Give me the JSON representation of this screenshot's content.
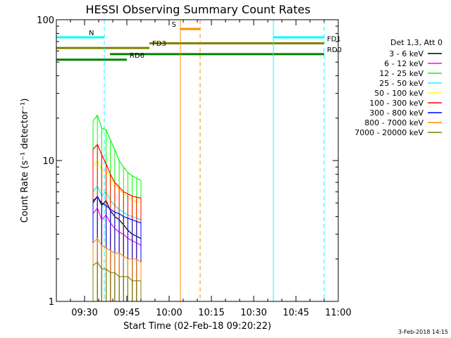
{
  "chart_data": {
    "type": "line",
    "title": "HESSI Observing Summary Count Rates",
    "xlabel": "Start Time (02-Feb-18 09:20:22)",
    "ylabel": "Count Rate (s⁻¹ detector⁻¹)",
    "yscale": "log",
    "ylim": [
      1,
      100
    ],
    "xlim_minutes_after_0920": [
      0,
      100
    ],
    "x_ticks": [
      "09:30",
      "09:45",
      "10:00",
      "10:15",
      "10:30",
      "10:45",
      "11:00"
    ],
    "y_ticks": [
      "1",
      "10",
      "100"
    ],
    "footer": "3-Feb-2018 14:15",
    "legend_title": "Det 1,3, Att 0",
    "legend_position": "right",
    "series": [
      {
        "name": "3 - 6 keV",
        "color": "#000000",
        "x_start": "09:33",
        "x_end": "09:50",
        "values": [
          5.0,
          5.6,
          4.8,
          5.2,
          4.4,
          4.0,
          3.8,
          3.5,
          3.2,
          3.0,
          2.9,
          2.8
        ]
      },
      {
        "name": "6 - 12 keV",
        "color": "#ff00ff",
        "x_start": "09:33",
        "x_end": "09:50",
        "values": [
          4.2,
          4.6,
          3.8,
          4.1,
          3.6,
          3.3,
          3.1,
          3.0,
          2.8,
          2.7,
          2.6,
          2.5
        ]
      },
      {
        "name": "12 - 25 keV",
        "color": "#00ff00",
        "x_start": "09:33",
        "x_end": "09:50",
        "values": [
          19.0,
          21.0,
          17.0,
          16.5,
          14.0,
          12.0,
          10.0,
          9.0,
          8.2,
          7.8,
          7.5,
          7.2
        ]
      },
      {
        "name": "25 - 50 keV",
        "color": "#00ffff",
        "x_start": "09:33",
        "x_end": "09:50",
        "values": [
          6.0,
          6.6,
          5.6,
          6.0,
          5.2,
          4.8,
          4.5,
          4.3,
          4.1,
          4.0,
          3.9,
          3.8
        ]
      },
      {
        "name": "50 - 100 keV",
        "color": "#ffff00",
        "x_start": "09:33",
        "x_end": "09:50",
        "values": [
          9.0,
          10.0,
          8.6,
          8.6,
          7.6,
          6.8,
          6.2,
          5.8,
          5.5,
          5.3,
          5.1,
          5.0
        ]
      },
      {
        "name": "100 - 300 keV",
        "color": "#ff0000",
        "x_start": "09:33",
        "x_end": "09:50",
        "values": [
          12.0,
          13.0,
          11.0,
          9.5,
          8.0,
          7.0,
          6.5,
          6.0,
          5.8,
          5.6,
          5.5,
          5.4
        ]
      },
      {
        "name": "300 - 800 keV",
        "color": "#0000ff",
        "x_start": "09:33",
        "x_end": "09:50",
        "values": [
          5.2,
          5.5,
          5.0,
          4.8,
          4.5,
          4.3,
          4.2,
          4.0,
          3.9,
          3.8,
          3.7,
          3.6
        ]
      },
      {
        "name": "800 - 7000 keV",
        "color": "#ff8c00",
        "x_start": "09:33",
        "x_end": "09:50",
        "values": [
          2.6,
          2.8,
          2.5,
          2.4,
          2.3,
          2.2,
          2.2,
          2.1,
          2.0,
          2.0,
          2.0,
          1.9
        ]
      },
      {
        "name": "7000 - 20000 keV",
        "color": "#808000",
        "x_start": "09:33",
        "x_end": "09:50",
        "values": [
          1.8,
          1.9,
          1.7,
          1.7,
          1.6,
          1.6,
          1.5,
          1.5,
          1.5,
          1.4,
          1.4,
          1.4
        ]
      }
    ],
    "flag_bars": [
      {
        "label": "N",
        "color": "#00ffff",
        "x_start": "09:20",
        "x_end": "09:37",
        "y": 75
      },
      {
        "label": "",
        "color": "#00ffff",
        "x_start": "10:37",
        "x_end": "10:55",
        "y": 75
      },
      {
        "label": "S",
        "color": "#ff8c00",
        "x_start": "10:04",
        "x_end": "10:11",
        "y": 86
      },
      {
        "label": "FD1",
        "color": "#808000",
        "x_start": "09:53",
        "x_end": "10:55",
        "y": 68
      },
      {
        "label": "FD3",
        "color": "#808000",
        "x_start": "09:20",
        "x_end": "09:53",
        "y": 63
      },
      {
        "label": "RD0",
        "color": "#008000",
        "x_start": "09:39",
        "x_end": "10:55",
        "y": 57
      },
      {
        "label": "RD6",
        "color": "#008000",
        "x_start": "09:20",
        "x_end": "09:45",
        "y": 52
      }
    ],
    "vertical_lines": [
      {
        "x": "09:20",
        "color": "#00ffff",
        "style": "solid"
      },
      {
        "x": "09:37",
        "color": "#00ffff",
        "style": "dashed"
      },
      {
        "x": "10:04",
        "color": "#ff8c00",
        "style": "solid"
      },
      {
        "x": "10:11",
        "color": "#ff8c00",
        "style": "dashed"
      },
      {
        "x": "10:37",
        "color": "#00ffff",
        "style": "solid"
      },
      {
        "x": "10:55",
        "color": "#00ffff",
        "style": "dashed"
      }
    ]
  }
}
